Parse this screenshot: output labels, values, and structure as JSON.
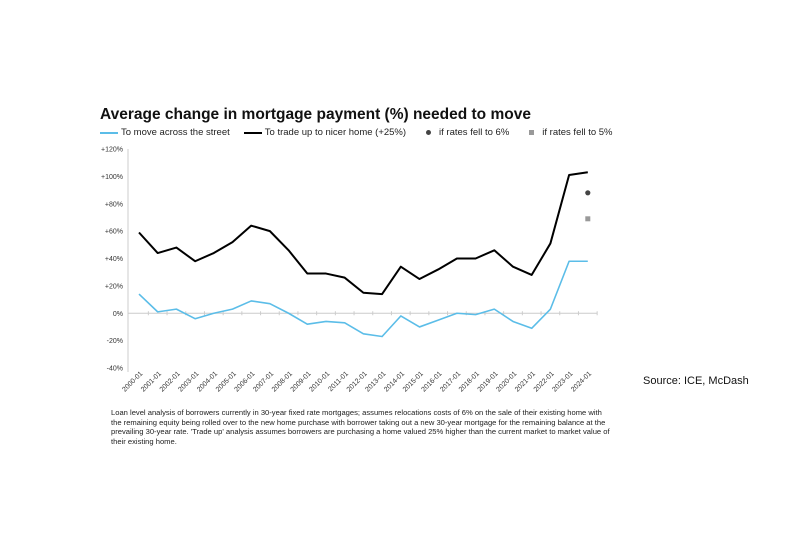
{
  "chart_data": {
    "type": "line",
    "title": "Average change in mortgage payment (%) needed to move",
    "xlabel": "",
    "ylabel": "",
    "ylim": [
      -40,
      120
    ],
    "yticks": [
      "+120%",
      "+100%",
      "+80%",
      "+60%",
      "+40%",
      "+20%",
      "0%",
      "-20%",
      "-40%"
    ],
    "ytick_values": [
      120,
      100,
      80,
      60,
      40,
      20,
      0,
      -20,
      -40
    ],
    "x": [
      "2000-01",
      "2001-01",
      "2002-01",
      "2003-01",
      "2004-01",
      "2005-01",
      "2006-01",
      "2007-01",
      "2008-01",
      "2009-01",
      "2010-01",
      "2011-01",
      "2012-01",
      "2013-01",
      "2014-01",
      "2015-01",
      "2016-01",
      "2017-01",
      "2018-01",
      "2019-01",
      "2020-01",
      "2021-01",
      "2022-01",
      "2023-01",
      "2024-01"
    ],
    "series": [
      {
        "name": "To move across the street",
        "color": "#5bbde8",
        "values": [
          14,
          1,
          3,
          -4,
          0,
          3,
          9,
          7,
          0,
          -8,
          -6,
          -7,
          -15,
          -17,
          -2,
          -10,
          -5,
          0,
          -1,
          3,
          -6,
          -11,
          3,
          38,
          38
        ]
      },
      {
        "name": "To trade up to nicer home (+25%)",
        "color": "#000000",
        "values": [
          59,
          44,
          48,
          38,
          44,
          52,
          64,
          60,
          46,
          29,
          29,
          26,
          15,
          14,
          34,
          25,
          32,
          40,
          40,
          46,
          34,
          28,
          51,
          101,
          103
        ]
      }
    ],
    "points": [
      {
        "name": "if rates fell to 6%",
        "marker": "circle",
        "color": "#444444",
        "x": "2024-01",
        "value": 88
      },
      {
        "name": "if rates fell to 5%",
        "marker": "square",
        "color": "#999999",
        "x": "2024-01",
        "value": 69
      }
    ],
    "legend_position": "top-left",
    "grid": false
  },
  "source": "Source: ICE, McDash",
  "note": "Loan level analysis of borrowers currently in 30-year fixed rate mortgages; assumes relocations costs of 6% on the sale of their existing home with the remaining equity being rolled over to the new home purchase with borrower taking out a new 30-year mortgage for the remaining balance at the prevailing 30-year rate.  'Trade up' analysis assumes borrowers are purchasing a home valued 25% higher than the current market to market value of their existing home."
}
